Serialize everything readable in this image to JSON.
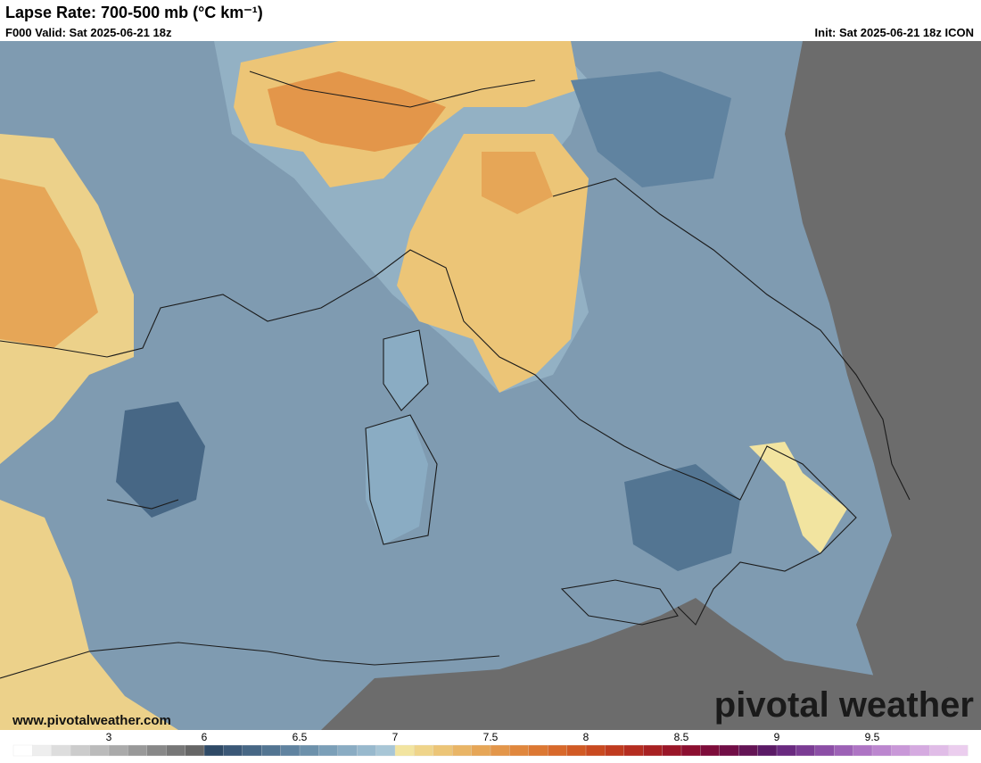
{
  "header": {
    "title": "Lapse Rate: 700-500 mb (°C km⁻¹)",
    "valid": "F000 Valid: Sat 2025-06-21 18z",
    "init": "Init: Sat 2025-06-21 18z ICON"
  },
  "watermark": {
    "brand": "pivotal weather",
    "url": "www.pivotalweather.com"
  },
  "colorbar": {
    "ticks": [
      3,
      6,
      6.5,
      7,
      7.5,
      8,
      8.5,
      9,
      9.5
    ],
    "colors": [
      "#ffffff",
      "#eeeeee",
      "#dddddd",
      "#cccccc",
      "#bbbbbb",
      "#aaaaaa",
      "#999999",
      "#888888",
      "#777777",
      "#666666",
      "#2f4a66",
      "#3b5877",
      "#476785",
      "#537592",
      "#6083a0",
      "#6d91ab",
      "#7b9fb8",
      "#8aacc3",
      "#98b9cd",
      "#a8c6d6",
      "#f2e4a0",
      "#efd48a",
      "#ecc577",
      "#e9b566",
      "#e6a657",
      "#e3964a",
      "#e0873d",
      "#dc7833",
      "#d8692b",
      "#d15a24",
      "#c94a20",
      "#c03b1f",
      "#b52d20",
      "#a82122",
      "#9a1628",
      "#8c0f30",
      "#7e0c3a",
      "#710e46",
      "#641455",
      "#5b1a66",
      "#6a2a80",
      "#7b3c94",
      "#8c4ea6",
      "#9d61b6",
      "#ae74c4",
      "#bc86cf",
      "#c998d8",
      "#d5aae0",
      "#e0bce7",
      "#ebcdee"
    ]
  }
}
